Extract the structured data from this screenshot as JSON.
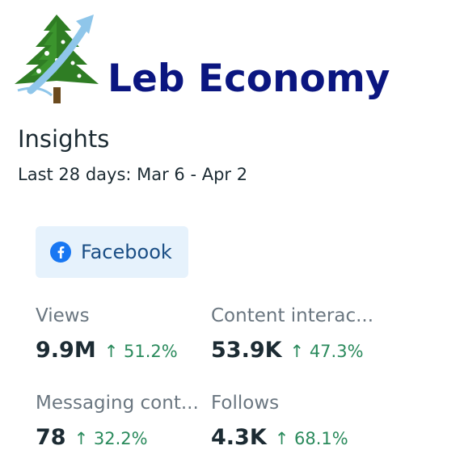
{
  "brand": {
    "name": "Leb Economy",
    "logo_icon": "cedar-tree-arrow-icon",
    "color": "#0b1680"
  },
  "insights": {
    "title": "Insights",
    "date_range": "Last 28 days: Mar 6 - Apr 2"
  },
  "platform": {
    "label": "Facebook",
    "icon": "facebook-icon"
  },
  "metrics": [
    {
      "label": "Views",
      "value": "9.9M",
      "change": "↑ 51.2%"
    },
    {
      "label": "Content interac...",
      "value": "53.9K",
      "change": "↑ 47.3%"
    },
    {
      "label": "Messaging cont...",
      "value": "78",
      "change": "↑ 32.2%"
    },
    {
      "label": "Follows",
      "value": "4.3K",
      "change": "↑ 68.1%"
    }
  ],
  "colors": {
    "positive_change": "#2a8a5c",
    "chip_background": "#e6f2fc",
    "facebook_blue": "#1877f2"
  }
}
